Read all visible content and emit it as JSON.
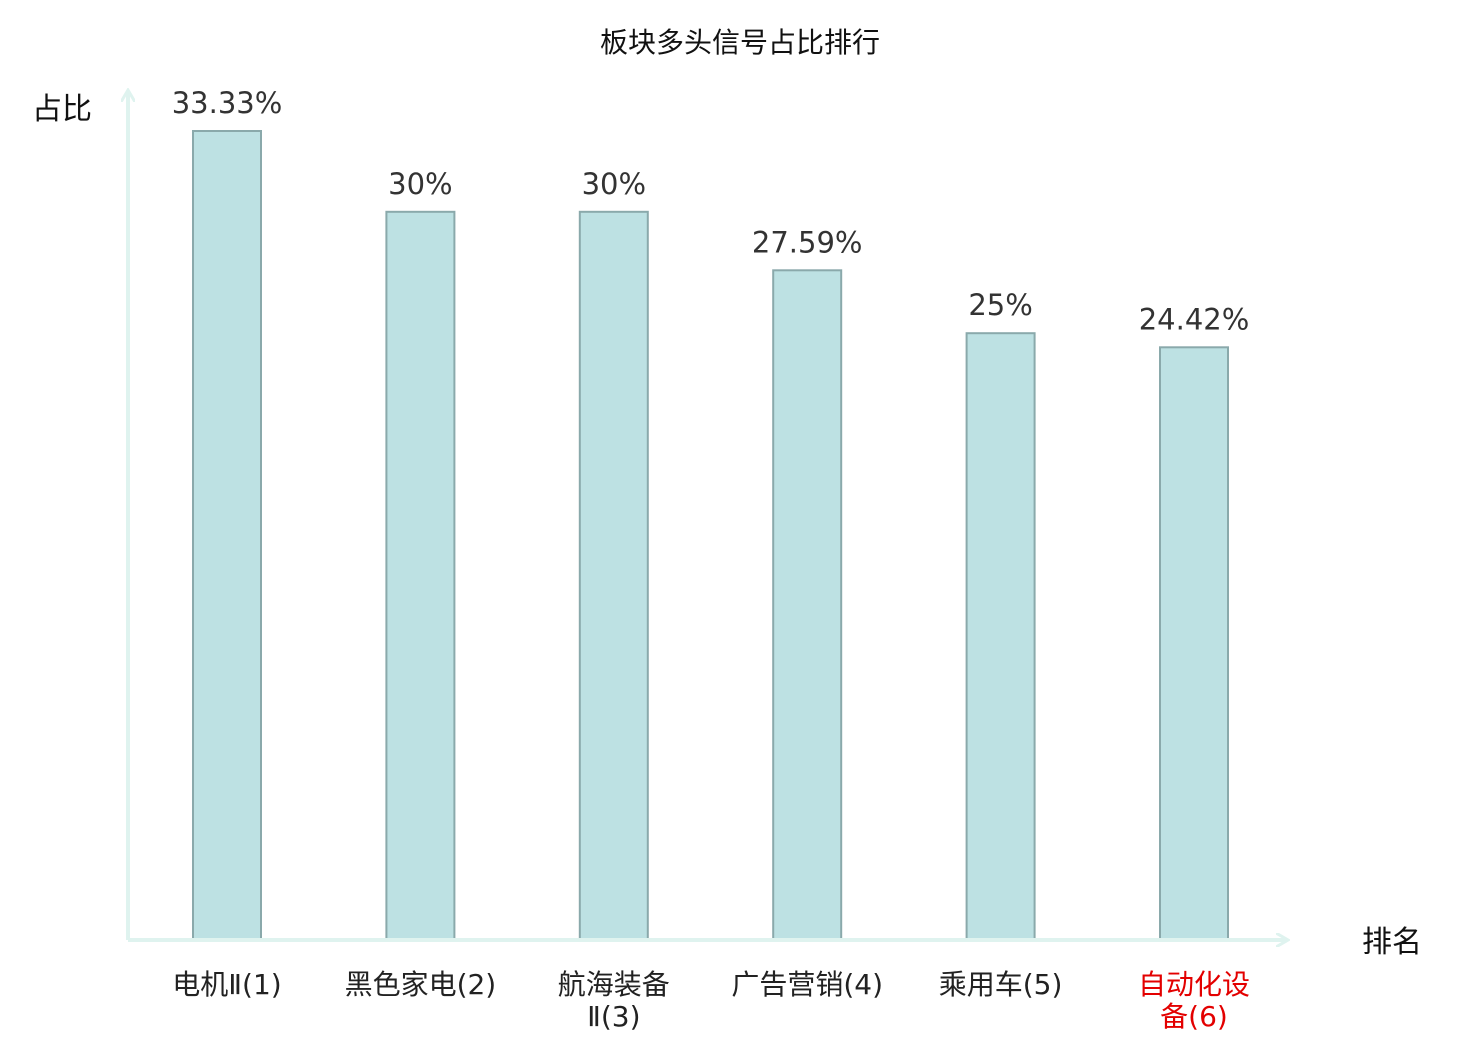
{
  "chart_data": {
    "type": "bar",
    "title": "板块多头信号占比排行",
    "ylabel": "占比",
    "xlabel": "排名",
    "categories": [
      [
        "电机Ⅱ(1)"
      ],
      [
        "黑色家电(2)"
      ],
      [
        "航海装备",
        "Ⅱ(3)"
      ],
      [
        "广告营销(4)"
      ],
      [
        "乘用车(5)"
      ],
      [
        "自动化设",
        "备(6)"
      ]
    ],
    "values": [
      33.33,
      30,
      30,
      27.59,
      25,
      24.42
    ],
    "value_labels": [
      "33.33%",
      "30%",
      "30%",
      "27.59%",
      "25%",
      "24.42%"
    ],
    "ylim": [
      0,
      33.33
    ],
    "grid": false,
    "legend": "none",
    "colors": {
      "bar_fill": "#bde1e3",
      "bar_stroke": "#8aa9ab",
      "axis": "#dff3ef",
      "tick_default": "#222222",
      "tick_highlight": "#e30000"
    },
    "highlight_index": 5
  }
}
